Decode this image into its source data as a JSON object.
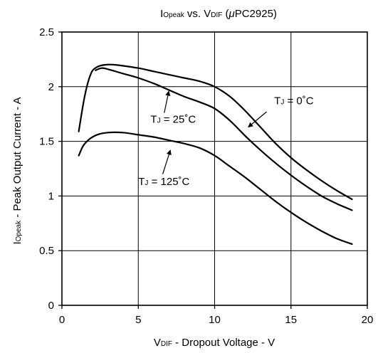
{
  "chart_data": {
    "type": "line",
    "title": {
      "main": "I",
      "main_sub": "Opeak",
      "vs": " vs. V",
      "vs_sub": "DIF",
      "part": " (",
      "mu": "μ",
      "part_rest": "PC2925)"
    },
    "xlabel": {
      "main": "V",
      "sub": "DIF",
      "rest": " - Dropout Voltage - V"
    },
    "ylabel": {
      "main": "I",
      "sub": "Opeak",
      "rest": " - Peak Output Current - A"
    },
    "xlim": [
      0,
      20
    ],
    "ylim": [
      0,
      2.5
    ],
    "xticks": [
      "0",
      "5",
      "10",
      "15",
      "20"
    ],
    "yticks": [
      "0",
      "0.5",
      "1",
      "1.5",
      "2",
      "2.5"
    ],
    "grid": true,
    "series": [
      {
        "label": {
          "t": "T",
          "sub": "J",
          "rest": " = 0˚C"
        },
        "points": [
          [
            1.1,
            1.59
          ],
          [
            1.5,
            1.92
          ],
          [
            1.9,
            2.12
          ],
          [
            2.3,
            2.18
          ],
          [
            2.8,
            2.2
          ],
          [
            3.5,
            2.2
          ],
          [
            5,
            2.17
          ],
          [
            6,
            2.14
          ],
          [
            7,
            2.11
          ],
          [
            8,
            2.08
          ],
          [
            9,
            2.05
          ],
          [
            10,
            2.0
          ],
          [
            11,
            1.91
          ],
          [
            12,
            1.78
          ],
          [
            13,
            1.63
          ],
          [
            14,
            1.48
          ],
          [
            15,
            1.35
          ],
          [
            16,
            1.24
          ],
          [
            17,
            1.14
          ],
          [
            18,
            1.05
          ],
          [
            19,
            0.97
          ]
        ]
      },
      {
        "label": {
          "t": "T",
          "sub": "J",
          "rest": " = 25˚C"
        },
        "points": [
          [
            2.2,
            2.15
          ],
          [
            2.6,
            2.17
          ],
          [
            3,
            2.16
          ],
          [
            4,
            2.12
          ],
          [
            5,
            2.08
          ],
          [
            6,
            2.03
          ],
          [
            7,
            1.97
          ],
          [
            8,
            1.91
          ],
          [
            9,
            1.86
          ],
          [
            10,
            1.8
          ],
          [
            11,
            1.69
          ],
          [
            12,
            1.55
          ],
          [
            13,
            1.42
          ],
          [
            14,
            1.3
          ],
          [
            15,
            1.19
          ],
          [
            16,
            1.09
          ],
          [
            17,
            1.0
          ],
          [
            18,
            0.93
          ],
          [
            19,
            0.87
          ]
        ]
      },
      {
        "label": {
          "t": "T",
          "sub": "J",
          "rest": " = 125˚C"
        },
        "points": [
          [
            1.1,
            1.37
          ],
          [
            1.4,
            1.46
          ],
          [
            1.8,
            1.52
          ],
          [
            2.3,
            1.56
          ],
          [
            3,
            1.58
          ],
          [
            4,
            1.58
          ],
          [
            5,
            1.56
          ],
          [
            6,
            1.54
          ],
          [
            7,
            1.51
          ],
          [
            8,
            1.48
          ],
          [
            9,
            1.44
          ],
          [
            10,
            1.37
          ],
          [
            11,
            1.27
          ],
          [
            12,
            1.17
          ],
          [
            13,
            1.06
          ],
          [
            14,
            0.95
          ],
          [
            15,
            0.85
          ],
          [
            16,
            0.76
          ],
          [
            17,
            0.68
          ],
          [
            18,
            0.61
          ],
          [
            19,
            0.56
          ]
        ]
      }
    ],
    "annotations": [
      {
        "series": 0,
        "text_at": [
          13.9,
          1.84
        ],
        "arrow_from": [
          13.4,
          1.77
        ],
        "arrow_to": [
          12.2,
          1.63
        ]
      },
      {
        "series": 1,
        "text_at": [
          5.8,
          1.67
        ],
        "arrow_from": [
          6.7,
          1.76
        ],
        "arrow_to": [
          7.0,
          1.96
        ]
      },
      {
        "series": 2,
        "text_at": [
          5.0,
          1.1
        ],
        "arrow_from": [
          6.6,
          1.2
        ],
        "arrow_to": [
          7.1,
          1.42
        ]
      }
    ]
  }
}
